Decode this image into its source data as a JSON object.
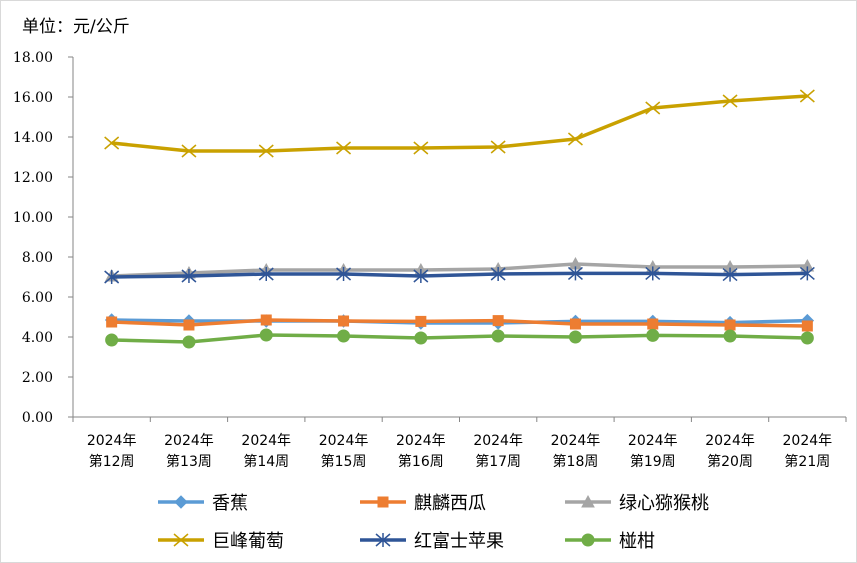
{
  "chart_data": {
    "type": "line",
    "unit_label": "单位：元/公斤",
    "ylim": [
      0,
      18
    ],
    "ytick_labels": [
      "0.00",
      "2.00",
      "4.00",
      "6.00",
      "8.00",
      "10.00",
      "12.00",
      "14.00",
      "16.00",
      "18.00"
    ],
    "categories": [
      [
        "2024年",
        "第12周"
      ],
      [
        "2024年",
        "第13周"
      ],
      [
        "2024年",
        "第14周"
      ],
      [
        "2024年",
        "第15周"
      ],
      [
        "2024年",
        "第16周"
      ],
      [
        "2024年",
        "第17周"
      ],
      [
        "2024年",
        "第18周"
      ],
      [
        "2024年",
        "第19周"
      ],
      [
        "2024年",
        "第20周"
      ],
      [
        "2024年",
        "第21周"
      ]
    ],
    "grid": false,
    "legend_position": "bottom",
    "series": [
      {
        "name": "香蕉",
        "color": "#5b9bd5",
        "marker": "diamond",
        "values": [
          4.85,
          4.8,
          4.8,
          4.8,
          4.7,
          4.7,
          4.78,
          4.78,
          4.72,
          4.82
        ]
      },
      {
        "name": "麒麟西瓜",
        "color": "#ed7d31",
        "marker": "square",
        "values": [
          4.75,
          4.6,
          4.85,
          4.8,
          4.78,
          4.82,
          4.65,
          4.65,
          4.6,
          4.55
        ]
      },
      {
        "name": "绿心猕猴桃",
        "color": "#a5a5a5",
        "marker": "triangle",
        "values": [
          7.05,
          7.2,
          7.35,
          7.35,
          7.35,
          7.4,
          7.65,
          7.5,
          7.5,
          7.55
        ]
      },
      {
        "name": "巨峰葡萄",
        "color": "#c9a100",
        "marker": "x",
        "values": [
          13.7,
          13.3,
          13.3,
          13.45,
          13.45,
          13.5,
          13.9,
          15.45,
          15.8,
          16.05
        ]
      },
      {
        "name": "红富士苹果",
        "color": "#2f5597",
        "marker": "star",
        "values": [
          7.0,
          7.05,
          7.15,
          7.15,
          7.05,
          7.15,
          7.18,
          7.18,
          7.12,
          7.18
        ]
      },
      {
        "name": "椪柑",
        "color": "#70ad47",
        "marker": "circle",
        "values": [
          3.85,
          3.75,
          4.1,
          4.05,
          3.95,
          4.05,
          4.0,
          4.08,
          4.05,
          3.95
        ]
      }
    ]
  }
}
